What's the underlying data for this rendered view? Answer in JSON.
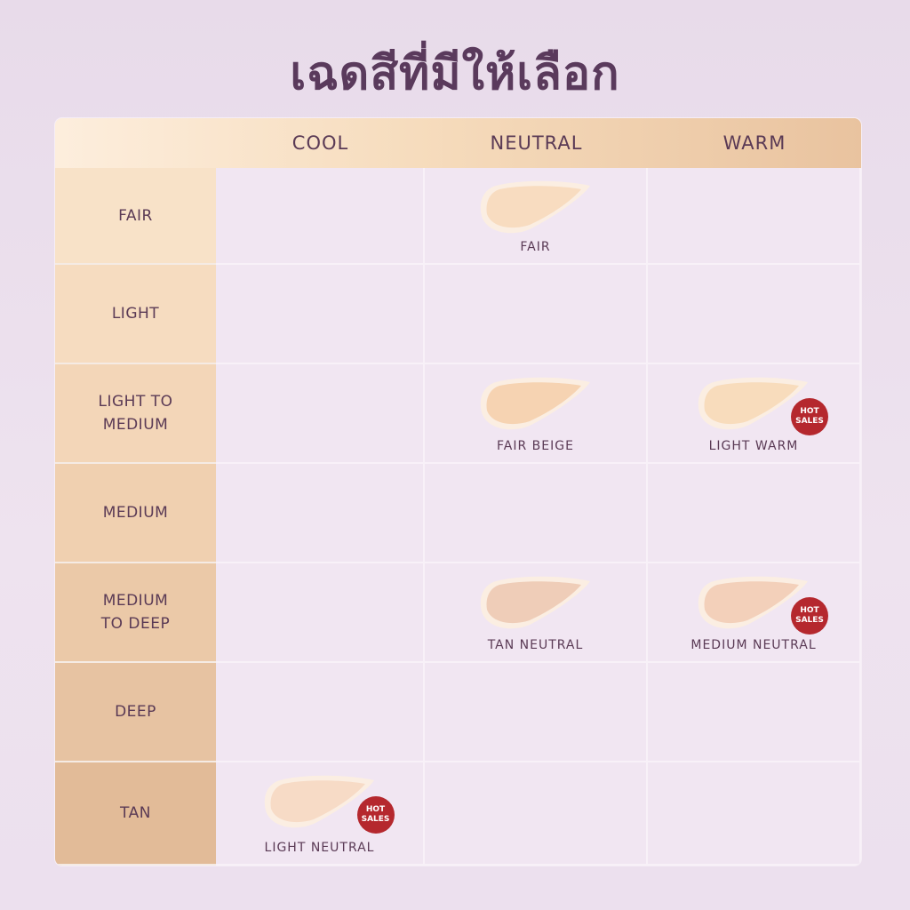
{
  "title": "เฉดสีที่มีให้เลือก",
  "columns": [
    "COOL",
    "NEUTRAL",
    "WARM"
  ],
  "rows": [
    {
      "label": "FAIR",
      "cells": [
        null,
        {
          "shade": "FAIR",
          "hot": false,
          "color": "#f8dcc0"
        },
        null
      ]
    },
    {
      "label": "LIGHT",
      "cells": [
        null,
        null,
        null
      ]
    },
    {
      "label": "LIGHT TO MEDIUM",
      "cells": [
        null,
        {
          "shade": "FAIR BEIGE",
          "hot": false,
          "color": "#f6d3b2"
        },
        {
          "shade": "LIGHT WARM",
          "hot": true,
          "color": "#f8dcbc"
        }
      ]
    },
    {
      "label": "MEDIUM",
      "cells": [
        null,
        null,
        null
      ]
    },
    {
      "label": "MEDIUM TO DEEP",
      "cells": [
        null,
        {
          "shade": "TAN NEUTRAL",
          "hot": false,
          "color": "#efcdb8"
        },
        {
          "shade": "MEDIUM NEUTRAL",
          "hot": true,
          "color": "#f3d0ba"
        }
      ]
    },
    {
      "label": "DEEP",
      "cells": [
        null,
        null,
        null
      ]
    },
    {
      "label": "TAN",
      "cells": [
        {
          "shade": "LIGHT NEUTRAL",
          "hot": true,
          "color": "#f7dbc6"
        },
        null,
        null
      ]
    }
  ],
  "badge": {
    "line1": "HOT",
    "line2": "SALES",
    "color": "#b5282e"
  }
}
